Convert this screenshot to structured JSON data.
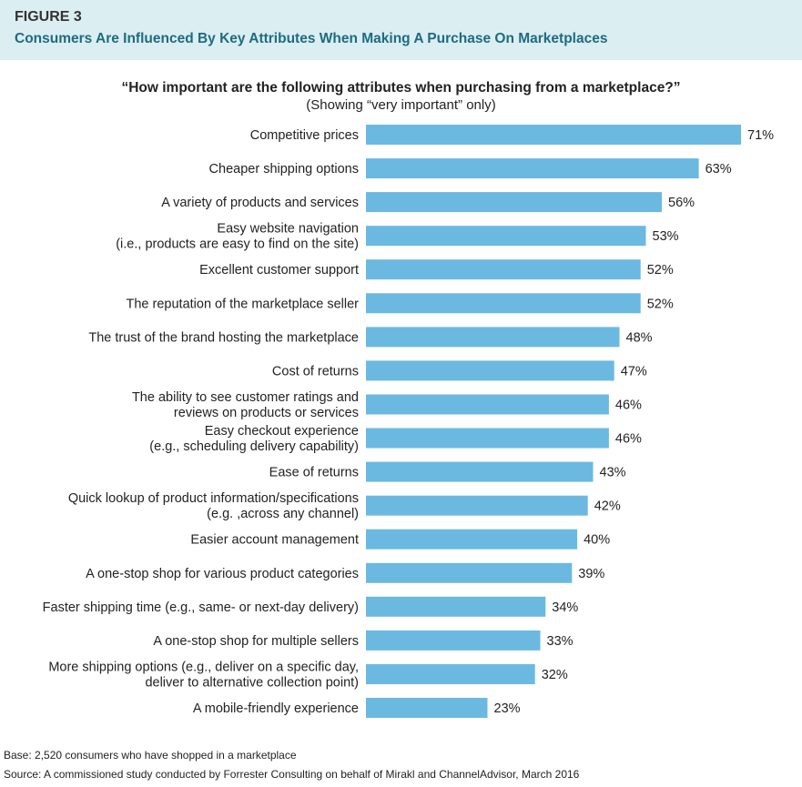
{
  "header": {
    "figure_label": "FIGURE 3",
    "title": "Consumers Are Influenced By Key Attributes When Making A Purchase On Marketplaces"
  },
  "chart_data": {
    "type": "bar",
    "orientation": "horizontal",
    "title": "“How important are the following attributes when purchasing from a marketplace?”",
    "subtitle": "(Showing “very important” only)",
    "bar_color": "#6bb9e1",
    "categories": [
      [
        "Competitive prices"
      ],
      [
        "Cheaper shipping options"
      ],
      [
        "A variety of products and services"
      ],
      [
        "Easy website navigation",
        "(i.e., products are easy to find on the site)"
      ],
      [
        "Excellent customer support"
      ],
      [
        "The reputation of the marketplace seller"
      ],
      [
        "The trust of the brand hosting the marketplace"
      ],
      [
        "Cost of returns"
      ],
      [
        "The ability to see customer ratings and",
        "reviews on products or services"
      ],
      [
        "Easy checkout experience",
        "(e.g., scheduling delivery capability)"
      ],
      [
        "Ease of returns"
      ],
      [
        "Quick lookup of product information/specifications",
        "(e.g. ,across any channel)"
      ],
      [
        "Easier account management"
      ],
      [
        "A one-stop shop for various product categories"
      ],
      [
        "Faster shipping time (e.g., same- or next-day delivery)"
      ],
      [
        "A one-stop shop for multiple sellers"
      ],
      [
        "More shipping options (e.g., deliver on a specific day,",
        "deliver to alternative collection point)"
      ],
      [
        "A mobile-friendly experience"
      ]
    ],
    "values": [
      71,
      63,
      56,
      53,
      52,
      52,
      48,
      47,
      46,
      46,
      43,
      42,
      40,
      39,
      34,
      33,
      32,
      23
    ],
    "value_labels": [
      "71%",
      "63%",
      "56%",
      "53%",
      "52%",
      "52%",
      "48%",
      "47%",
      "46%",
      "46%",
      "43%",
      "42%",
      "40%",
      "39%",
      "34%",
      "33%",
      "32%",
      "23%"
    ],
    "xlim": [
      0,
      71
    ]
  },
  "footer": {
    "base": "Base: 2,520 consumers who have shopped in a marketplace",
    "source": "Source: A commissioned study conducted by Forrester Consulting on behalf of Mirakl and ChannelAdvisor, March 2016"
  }
}
